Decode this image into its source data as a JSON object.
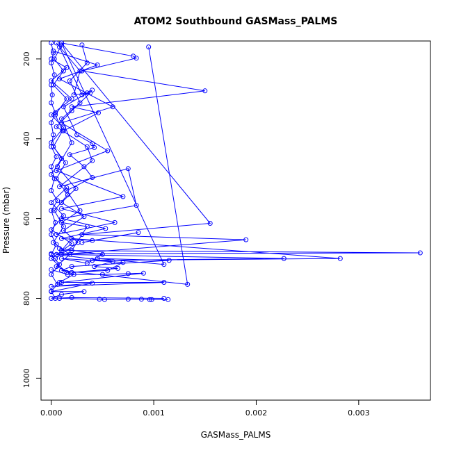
{
  "chart_data": {
    "type": "line",
    "title": "ATOM2 Southbound GASMass_PALMS",
    "xlabel": "GASMass_PALMS",
    "ylabel": "Pressure (mbar)",
    "xlim": [
      -0.0001,
      0.0037
    ],
    "ylim": [
      1055,
      155
    ],
    "y_reversed": true,
    "x_ticks": [
      {
        "value": 0.0,
        "label": "0.000"
      },
      {
        "value": 0.001,
        "label": "0.001"
      },
      {
        "value": 0.002,
        "label": "0.002"
      },
      {
        "value": 0.003,
        "label": "0.003"
      }
    ],
    "y_ticks": [
      {
        "value": 200,
        "label": "200"
      },
      {
        "value": 400,
        "label": "400"
      },
      {
        "value": 600,
        "label": "600"
      },
      {
        "value": 800,
        "label": "800"
      },
      {
        "value": 1000,
        "label": "1000"
      }
    ],
    "grid": false,
    "legend": "none",
    "color": "#0000ff",
    "marker": "open-circle",
    "series": [
      {
        "points": [
          [
            0.0,
            160
          ],
          [
            2e-05,
            185
          ],
          [
            0.0,
            210
          ],
          [
            3e-05,
            240
          ],
          [
            0.0,
            265
          ],
          [
            1e-05,
            290
          ],
          [
            0.0,
            310
          ],
          [
            4e-05,
            335
          ],
          [
            0.0,
            360
          ],
          [
            2e-05,
            390
          ],
          [
            0.0,
            420
          ],
          [
            5e-05,
            445
          ],
          [
            0.0,
            470
          ],
          [
            3e-05,
            500
          ],
          [
            0.0,
            530
          ],
          [
            6e-05,
            555
          ],
          [
            0.0,
            580
          ],
          [
            4e-05,
            610
          ],
          [
            0.0,
            640
          ],
          [
            5e-05,
            665
          ],
          [
            0.0,
            690
          ],
          [
            8e-05,
            715
          ],
          [
            0.0,
            740
          ],
          [
            6e-05,
            765
          ],
          [
            0.0,
            782
          ],
          [
            4e-05,
            800
          ]
        ]
      },
      {
        "points": [
          [
            0.0001,
            165
          ],
          [
            3e-05,
            200
          ],
          [
            0.00012,
            230
          ],
          [
            2e-05,
            265
          ],
          [
            0.00015,
            300
          ],
          [
            4e-05,
            340
          ],
          [
            0.00011,
            380
          ],
          [
            2e-05,
            420
          ],
          [
            0.00014,
            460
          ],
          [
            5e-05,
            500
          ],
          [
            0.00016,
            540
          ],
          [
            3e-05,
            580
          ],
          [
            0.00012,
            620
          ],
          [
            2e-05,
            660
          ],
          [
            0.00018,
            690
          ],
          [
            5e-05,
            720
          ],
          [
            0.00022,
            740
          ],
          [
            8e-05,
            760
          ]
        ]
      },
      {
        "points": [
          [
            5e-05,
            160
          ],
          [
            0.00028,
            230
          ],
          [
            0.00022,
            290
          ],
          [
            0.00035,
            285
          ],
          [
            0.0004,
            278
          ],
          [
            0.00012,
            320
          ],
          [
            0.00025,
            390
          ],
          [
            0.0004,
            412
          ],
          [
            0.00042,
            422
          ],
          [
            0.00018,
            440
          ],
          [
            0.00032,
            470
          ],
          [
            0.0004,
            497
          ],
          [
            0.00015,
            530
          ],
          [
            0.00028,
            580
          ],
          [
            0.0001,
            610
          ],
          [
            0.00035,
            620
          ],
          [
            0.0002,
            680
          ]
        ]
      },
      {
        "points": [
          [
            0.0001,
            160
          ],
          [
            0.0008,
            193
          ],
          [
            0.00083,
            198
          ],
          [
            0.0003,
            230
          ],
          [
            0.0015,
            280
          ],
          [
            0.0002,
            320
          ],
          [
            0.00046,
            335
          ],
          [
            0.00012,
            380
          ]
        ]
      },
      {
        "points": [
          [
            8e-05,
            170
          ],
          [
            0.0003,
            290
          ],
          [
            0.00038,
            285
          ],
          [
            0.0002,
            330
          ],
          [
            5e-05,
            370
          ],
          [
            0.00035,
            420
          ],
          [
            0.0004,
            455
          ],
          [
            8e-05,
            520
          ],
          [
            0.00075,
            475
          ],
          [
            0.00083,
            567
          ],
          [
            0.0001,
            600
          ],
          [
            0.00053,
            625
          ],
          [
            0.0001,
            650
          ],
          [
            0.0004,
            655
          ],
          [
            0.00085,
            635
          ],
          [
            0.0003,
            660
          ]
        ]
      },
      {
        "points": [
          [
            0.0001,
            160
          ],
          [
            0.00155,
            612
          ],
          [
            0.0003,
            640
          ],
          [
            0.0019,
            653
          ],
          [
            0.0001,
            690
          ],
          [
            0.00227,
            700
          ],
          [
            0.0004,
            705
          ],
          [
            0.00282,
            700
          ],
          [
            0.0002,
            650
          ],
          [
            0.0001,
            680
          ],
          [
            0.0036,
            686
          ],
          [
            0.0,
            688
          ]
        ]
      },
      {
        "points": [
          [
            0.0001,
            160
          ],
          [
            0.0011,
            715
          ],
          [
            0.00045,
            700
          ],
          [
            0.00115,
            705
          ],
          [
            0.0002,
            720
          ],
          [
            0.0001,
            730
          ],
          [
            0.00133,
            765
          ],
          [
            0.00095,
            170
          ]
        ]
      },
      {
        "points": [
          [
            0.0,
            728
          ],
          [
            0.00016,
            740
          ],
          [
            0.0005,
            740
          ],
          [
            0.00075,
            738
          ],
          [
            0.0009,
            737
          ],
          [
            0.0001,
            760
          ],
          [
            0.0011,
            760
          ],
          [
            0.0,
            770
          ],
          [
            0.0004,
            762
          ],
          [
            0.0,
            783
          ],
          [
            0.00032,
            783
          ],
          [
            0.0001,
            790
          ],
          [
            0.0,
            800
          ],
          [
            0.0002,
            798
          ],
          [
            0.0011,
            800
          ]
        ]
      },
      {
        "points": [
          [
            8e-05,
            800
          ],
          [
            0.00047,
            802
          ],
          [
            0.00052,
            803
          ],
          [
            0.00075,
            802
          ],
          [
            0.00088,
            802
          ],
          [
            0.00096,
            803
          ],
          [
            0.00098,
            803
          ],
          [
            0.00114,
            803
          ]
        ]
      },
      {
        "points": [
          [
            5e-05,
            690
          ],
          [
            0.0006,
            708
          ],
          [
            0.00042,
            720
          ],
          [
            0.00065,
            725
          ],
          [
            0.0002,
            735
          ],
          [
            0.00055,
            730
          ],
          [
            0.0007,
            710
          ],
          [
            0.0001,
            700
          ],
          [
            0.00035,
            712
          ],
          [
            0.0005,
            690
          ],
          [
            8e-05,
            675
          ]
        ]
      },
      {
        "points": [
          [
            2e-05,
            180
          ],
          [
            0.00045,
            215
          ],
          [
            8e-05,
            250
          ],
          [
            0.0006,
            320
          ],
          [
            0.0001,
            360
          ],
          [
            0.00055,
            430
          ],
          [
            5e-05,
            480
          ],
          [
            0.0007,
            545
          ],
          [
            0.0001,
            575
          ],
          [
            0.00062,
            610
          ],
          [
            5e-05,
            640
          ]
        ]
      },
      {
        "points": [
          [
            0.0003,
            165
          ],
          [
            0.00035,
            210
          ],
          [
            0.00018,
            255
          ],
          [
            0.00028,
            310
          ],
          [
            0.0001,
            350
          ],
          [
            0.0002,
            410
          ],
          [
            6e-05,
            470
          ],
          [
            0.00024,
            525
          ],
          [
            0.0001,
            560
          ],
          [
            0.00032,
            595
          ],
          [
            0.00012,
            630
          ],
          [
            0.00026,
            660
          ],
          [
            4e-05,
            700
          ]
        ]
      },
      {
        "points": [
          [
            0.0,
            200
          ],
          [
            0.00015,
            222
          ],
          [
            0.0,
            255
          ],
          [
            0.0002,
            300
          ],
          [
            0.0,
            340
          ],
          [
            0.00012,
            372
          ],
          [
            0.0,
            410
          ],
          [
            0.0001,
            450
          ],
          [
            0.0,
            490
          ],
          [
            0.00015,
            523
          ],
          [
            0.0,
            560
          ],
          [
            0.00012,
            593
          ],
          [
            0.0,
            628
          ],
          [
            0.0002,
            663
          ],
          [
            0.0,
            700
          ],
          [
            0.00015,
            735
          ]
        ]
      }
    ]
  }
}
